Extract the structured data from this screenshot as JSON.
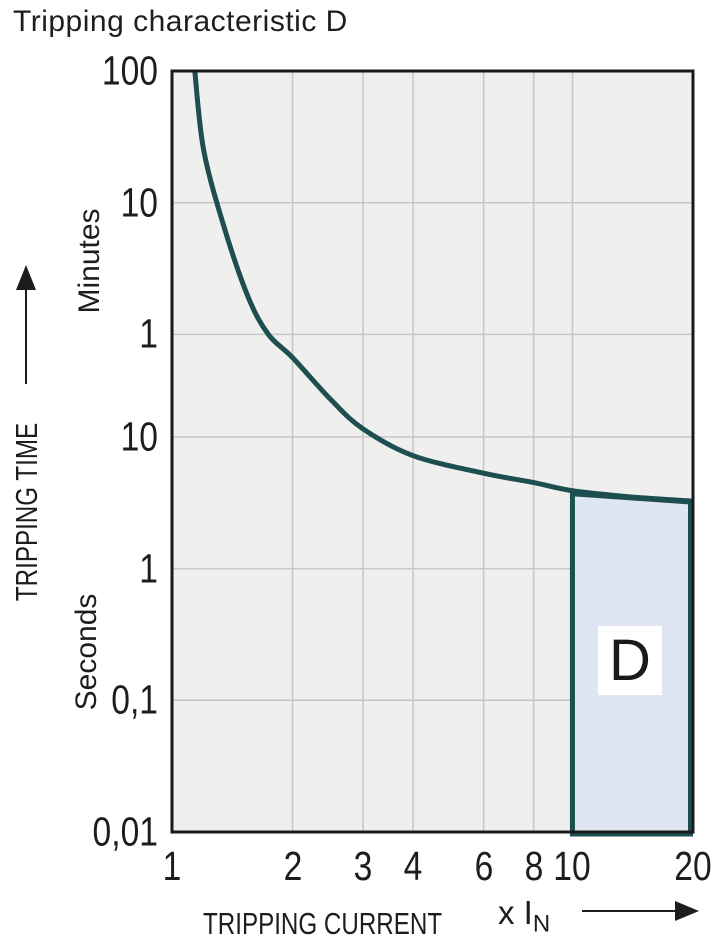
{
  "title": "Tripping characteristic D",
  "colors": {
    "curve": "#1d4f50",
    "region_fill": "#dfe5f3",
    "plot_background": "#efefee",
    "gridline": "#c6c6c6",
    "border": "#1a1a1a",
    "text": "#1d1d1d"
  },
  "chart_data": {
    "type": "line",
    "title": "Tripping characteristic D",
    "x_axis": {
      "label": "TRIPPING CURRENT",
      "unit_prefix": "x I",
      "unit_sub": "N",
      "scale": "log",
      "range": [
        1,
        20
      ],
      "ticks": [
        {
          "v": 1,
          "label": "1"
        },
        {
          "v": 2,
          "label": "2"
        },
        {
          "v": 3,
          "label": "3"
        },
        {
          "v": 4,
          "label": "4"
        },
        {
          "v": 6,
          "label": "6"
        },
        {
          "v": 8,
          "label": "8"
        },
        {
          "v": 10,
          "label": "10"
        },
        {
          "v": 20,
          "label": "20"
        }
      ],
      "gridlines": [
        2,
        3,
        4,
        6,
        8,
        10
      ]
    },
    "y_axis": {
      "label": "TRIPPING TIME",
      "unit_upper": "Minutes",
      "unit_lower": "Seconds",
      "scale": "log",
      "range_seconds": [
        0.01,
        6000
      ],
      "ticks": [
        {
          "s": 6000,
          "label": "100"
        },
        {
          "s": 600,
          "label": "10"
        },
        {
          "s": 60,
          "label": "1"
        },
        {
          "s": 10,
          "label": "10"
        },
        {
          "s": 1,
          "label": "1"
        },
        {
          "s": 0.1,
          "label": "0,1"
        },
        {
          "s": 0.01,
          "label": "0,01"
        }
      ],
      "gridlines_seconds": [
        600,
        60,
        10,
        1,
        0.1
      ]
    },
    "series": [
      {
        "name": "tripping-curve",
        "units": "[multiple of In, tripping time in seconds]",
        "points": [
          [
            1.14,
            6000
          ],
          [
            1.2,
            1500
          ],
          [
            1.35,
            390
          ],
          [
            1.55,
            115
          ],
          [
            1.74,
            60
          ],
          [
            2.0,
            40
          ],
          [
            2.5,
            19
          ],
          [
            3.0,
            11.5
          ],
          [
            4.0,
            7.2
          ],
          [
            6.0,
            5.3
          ],
          [
            8.0,
            4.5
          ],
          [
            10,
            3.9
          ],
          [
            14,
            3.5
          ],
          [
            20,
            3.25
          ]
        ]
      }
    ],
    "region": {
      "label": "D",
      "x_range": [
        10,
        20
      ],
      "bottom_seconds": 0.01,
      "top_seconds_at_left": 3.7,
      "top_seconds_at_right": 3.2
    }
  }
}
